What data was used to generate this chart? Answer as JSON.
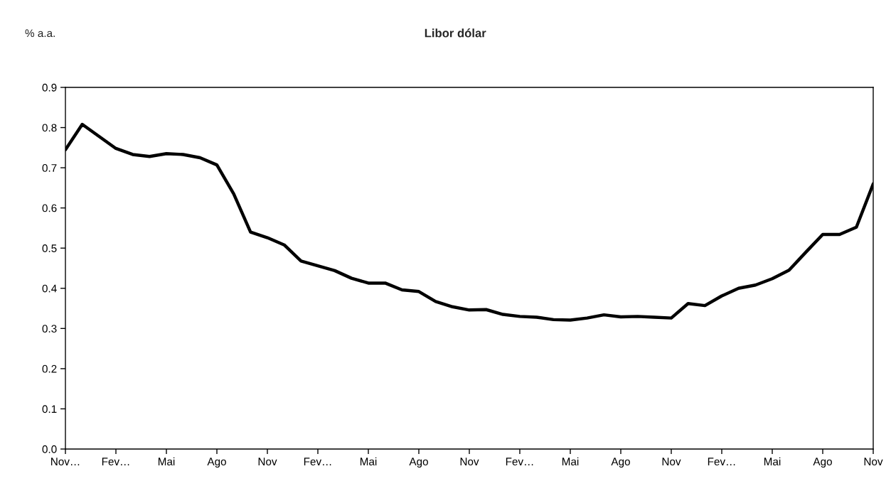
{
  "chart_data": {
    "type": "line",
    "title": "Libor dólar",
    "ylabel": "% a.a.",
    "categories": [
      "Nov…",
      null,
      null,
      "Fev…",
      null,
      null,
      "Mai",
      null,
      null,
      "Ago",
      null,
      null,
      "Nov",
      null,
      null,
      "Fev…",
      null,
      null,
      "Mai",
      null,
      null,
      "Ago",
      null,
      null,
      "Nov",
      null,
      null,
      "Fev…",
      null,
      null,
      "Mai",
      null,
      null,
      "Ago",
      null,
      null,
      "Nov",
      null,
      null,
      "Fev…",
      null,
      null,
      "Mai",
      null,
      null,
      "Ago",
      null,
      null,
      "Nov"
    ],
    "series": [
      {
        "color": "#000000",
        "values": [
          0.745,
          0.808,
          0.778,
          0.748,
          0.733,
          0.728,
          0.735,
          0.733,
          0.725,
          0.707,
          0.635,
          0.54,
          0.526,
          0.508,
          0.468,
          0.456,
          0.444,
          0.425,
          0.413,
          0.413,
          0.396,
          0.392,
          0.367,
          0.354,
          0.346,
          0.347,
          0.335,
          0.33,
          0.328,
          0.322,
          0.321,
          0.326,
          0.334,
          0.329,
          0.33,
          0.328,
          0.326,
          0.362,
          0.357,
          0.381,
          0.4,
          0.408,
          0.424,
          0.445,
          0.49,
          0.534,
          0.534,
          0.552,
          0.66
        ]
      }
    ],
    "ylim": [
      0,
      0.9
    ],
    "yticks": [
      {
        "value": 0,
        "label": "0.0"
      },
      0.1,
      0.2,
      0.3,
      0.4,
      0.5,
      0.6,
      0.7,
      0.8,
      0.9
    ],
    "grid": false,
    "legend": false,
    "marker": "none",
    "line_style": "solid"
  }
}
